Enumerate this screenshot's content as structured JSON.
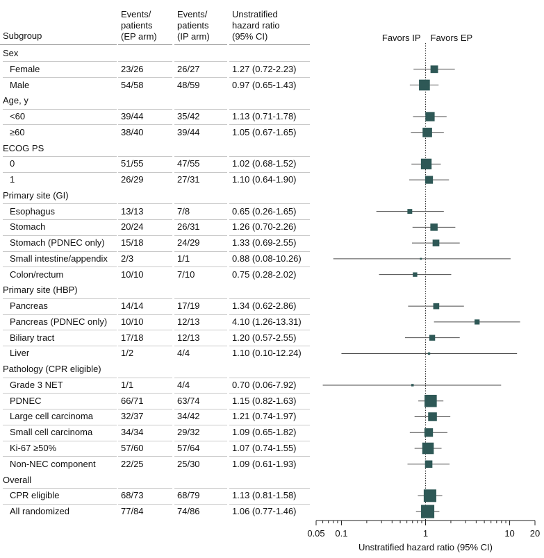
{
  "headers": {
    "subgroup": "Subgroup",
    "ep_line1": "Events/",
    "ep_line2": "patients",
    "ep_line3": "(EP arm)",
    "ip_line1": "Events/",
    "ip_line2": "patients",
    "ip_line3": "(IP arm)",
    "hr_line1": "Unstratified",
    "hr_line2": "hazard ratio",
    "hr_line3": "(95% CI)"
  },
  "colors": {
    "marker": "#2e5856",
    "line": "#4a4a4a",
    "ref_line": "#333333"
  },
  "chart_data": {
    "type": "forest",
    "xlabel": "Unstratified hazard ratio (95% CI)",
    "xscale": "log",
    "xlim": [
      0.05,
      20
    ],
    "xticks": [
      0.05,
      0.1,
      1,
      10,
      20
    ],
    "xtick_labels": [
      "0.05",
      "0.1",
      "1",
      "10",
      "20"
    ],
    "reference_value": 1,
    "favors_left": "Favors IP",
    "favors_right": "Favors EP",
    "rows": [
      {
        "kind": "group",
        "label": "Sex"
      },
      {
        "kind": "item",
        "label": "Female",
        "ep": "23/26",
        "ip": "26/27",
        "hr_text": "1.27 (0.72-2.23)",
        "hr": 1.27,
        "lo": 0.72,
        "hi": 2.23,
        "weight": 49
      },
      {
        "kind": "item",
        "label": "Male",
        "ep": "54/58",
        "ip": "48/59",
        "hr_text": "0.97 (0.65-1.43)",
        "hr": 0.97,
        "lo": 0.65,
        "hi": 1.43,
        "weight": 102
      },
      {
        "kind": "group",
        "label": "Age, y"
      },
      {
        "kind": "item",
        "label": "<60",
        "ep": "39/44",
        "ip": "35/42",
        "hr_text": "1.13 (0.71-1.78)",
        "hr": 1.13,
        "lo": 0.71,
        "hi": 1.78,
        "weight": 74
      },
      {
        "kind": "item",
        "label": "≥60",
        "ep": "38/40",
        "ip": "39/44",
        "hr_text": "1.05 (0.67-1.65)",
        "hr": 1.05,
        "lo": 0.67,
        "hi": 1.65,
        "weight": 77
      },
      {
        "kind": "group",
        "label": "ECOG PS"
      },
      {
        "kind": "item",
        "label": "0",
        "ep": "51/55",
        "ip": "47/55",
        "hr_text": "1.02 (0.68-1.52)",
        "hr": 1.02,
        "lo": 0.68,
        "hi": 1.52,
        "weight": 98
      },
      {
        "kind": "item",
        "label": "1",
        "ep": "26/29",
        "ip": "27/31",
        "hr_text": "1.10 (0.64-1.90)",
        "hr": 1.1,
        "lo": 0.64,
        "hi": 1.9,
        "weight": 53
      },
      {
        "kind": "group",
        "label": "Primary site (GI)"
      },
      {
        "kind": "item",
        "label": "Esophagus",
        "ep": "13/13",
        "ip": "7/8",
        "hr_text": "0.65 (0.26-1.65)",
        "hr": 0.65,
        "lo": 0.26,
        "hi": 1.65,
        "weight": 20
      },
      {
        "kind": "item",
        "label": "Stomach",
        "ep": "20/24",
        "ip": "26/31",
        "hr_text": "1.26 (0.70-2.26)",
        "hr": 1.26,
        "lo": 0.7,
        "hi": 2.26,
        "weight": 46
      },
      {
        "kind": "item",
        "label": "Stomach (PDNEC only)",
        "ep": "15/18",
        "ip": "24/29",
        "hr_text": "1.33 (0.69-2.55)",
        "hr": 1.33,
        "lo": 0.69,
        "hi": 2.55,
        "weight": 39
      },
      {
        "kind": "item",
        "label": "Small intestine/appendix",
        "ep": "2/3",
        "ip": "1/1",
        "hr_text": "0.88 (0.08-10.26)",
        "hr": 0.88,
        "lo": 0.08,
        "hi": 10.26,
        "weight": 3
      },
      {
        "kind": "item",
        "label": "Colon/rectum",
        "ep": "10/10",
        "ip": "7/10",
        "hr_text": "0.75 (0.28-2.02)",
        "hr": 0.75,
        "lo": 0.28,
        "hi": 2.02,
        "weight": 17
      },
      {
        "kind": "group",
        "label": "Primary site (HBP)"
      },
      {
        "kind": "item",
        "label": "Pancreas",
        "ep": "14/14",
        "ip": "17/19",
        "hr_text": "1.34 (0.62-2.86)",
        "hr": 1.34,
        "lo": 0.62,
        "hi": 2.86,
        "weight": 31
      },
      {
        "kind": "item",
        "label": "Pancreas (PDNEC only)",
        "ep": "10/10",
        "ip": "12/13",
        "hr_text": "4.10 (1.26-13.31)",
        "hr": 4.1,
        "lo": 1.26,
        "hi": 13.31,
        "weight": 22
      },
      {
        "kind": "item",
        "label": "Biliary tract",
        "ep": "17/18",
        "ip": "12/13",
        "hr_text": "1.20 (0.57-2.55)",
        "hr": 1.2,
        "lo": 0.57,
        "hi": 2.55,
        "weight": 29
      },
      {
        "kind": "item",
        "label": "Liver",
        "ep": "1/2",
        "ip": "4/4",
        "hr_text": "1.10 (0.10-12.24)",
        "hr": 1.1,
        "lo": 0.1,
        "hi": 12.24,
        "weight": 5
      },
      {
        "kind": "group",
        "label": "Pathology (CPR eligible)"
      },
      {
        "kind": "item",
        "label": "Grade 3 NET",
        "ep": "1/1",
        "ip": "4/4",
        "hr_text": "0.70 (0.06-7.92)",
        "hr": 0.7,
        "lo": 0.06,
        "hi": 7.92,
        "weight": 5
      },
      {
        "kind": "item",
        "label": "PDNEC",
        "ep": "66/71",
        "ip": "63/74",
        "hr_text": "1.15 (0.82-1.63)",
        "hr": 1.15,
        "lo": 0.82,
        "hi": 1.63,
        "weight": 129
      },
      {
        "kind": "item",
        "label": "Large cell carcinoma",
        "ep": "32/37",
        "ip": "34/42",
        "hr_text": "1.21 (0.74-1.97)",
        "hr": 1.21,
        "lo": 0.74,
        "hi": 1.97,
        "weight": 66
      },
      {
        "kind": "item",
        "label": "Small cell carcinoma",
        "ep": "34/34",
        "ip": "29/32",
        "hr_text": "1.09 (0.65-1.82)",
        "hr": 1.09,
        "lo": 0.65,
        "hi": 1.82,
        "weight": 63
      },
      {
        "kind": "item",
        "label": "Ki-67 ≥50%",
        "ep": "57/60",
        "ip": "57/64",
        "hr_text": "1.07 (0.74-1.55)",
        "hr": 1.07,
        "lo": 0.74,
        "hi": 1.55,
        "weight": 114
      },
      {
        "kind": "item",
        "label": "Non-NEC component",
        "ep": "22/25",
        "ip": "25/30",
        "hr_text": "1.09 (0.61-1.93)",
        "hr": 1.09,
        "lo": 0.61,
        "hi": 1.93,
        "weight": 47
      },
      {
        "kind": "group",
        "label": "Overall"
      },
      {
        "kind": "item",
        "label": "CPR eligible",
        "ep": "68/73",
        "ip": "68/79",
        "hr_text": "1.13 (0.81-1.58)",
        "hr": 1.13,
        "lo": 0.81,
        "hi": 1.58,
        "weight": 136
      },
      {
        "kind": "item",
        "label": "All randomized",
        "ep": "77/84",
        "ip": "74/86",
        "hr_text": "1.06 (0.77-1.46)",
        "hr": 1.06,
        "lo": 0.77,
        "hi": 1.46,
        "weight": 151
      }
    ]
  }
}
